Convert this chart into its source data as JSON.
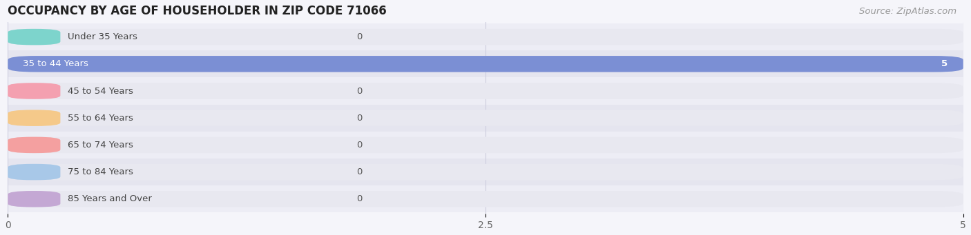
{
  "title": "OCCUPANCY BY AGE OF HOUSEHOLDER IN ZIP CODE 71066",
  "source": "Source: ZipAtlas.com",
  "categories": [
    "Under 35 Years",
    "35 to 44 Years",
    "45 to 54 Years",
    "55 to 64 Years",
    "65 to 74 Years",
    "75 to 84 Years",
    "85 Years and Over"
  ],
  "values": [
    0,
    5,
    0,
    0,
    0,
    0,
    0
  ],
  "bar_colors": [
    "#7dd4cc",
    "#7b8fd4",
    "#f4a0b0",
    "#f5c98a",
    "#f4a0a0",
    "#a8c8e8",
    "#c4a8d4"
  ],
  "xlim": [
    0,
    5
  ],
  "xticks": [
    0,
    2.5,
    5
  ],
  "bar_height": 0.6,
  "title_fontsize": 12,
  "label_fontsize": 9.5,
  "tick_fontsize": 10,
  "source_fontsize": 9.5,
  "bg_color": "#f5f5fa",
  "bar_bg_color": "#e8e8f0",
  "value_label_color_inside": "#ffffff",
  "value_label_color_outside": "#555555",
  "row_colors": [
    "#ededf5",
    "#e5e5ef"
  ]
}
